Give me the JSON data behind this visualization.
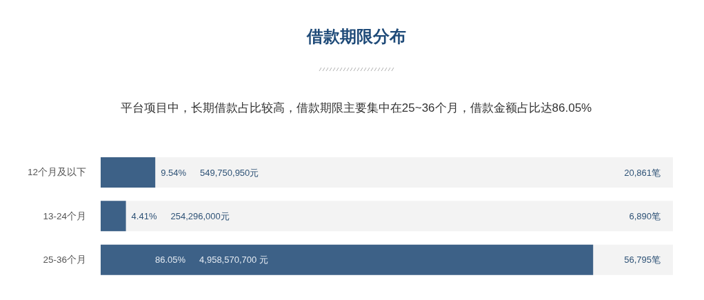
{
  "chart_data": {
    "type": "bar",
    "orientation": "horizontal",
    "title": "借款期限分布",
    "subtitle": "平台项目中，长期借款占比较高，借款期限主要集中在25~36个月，借款金额占比达86.05%",
    "categories": [
      "12个月及以下",
      "13-24个月",
      "25-36个月"
    ],
    "values": [
      9.54,
      4.41,
      86.05
    ],
    "value_labels": [
      "9.54%",
      "4.41%",
      "86.05%"
    ],
    "color": "#3d6187",
    "xlim": [
      0,
      100
    ],
    "tick_labels": "y",
    "annotations": [
      "549,750,950元",
      "20,861笔",
      "254,296,000元",
      "6,890笔",
      "4,958,570,700 元",
      "56,795笔"
    ]
  }
}
